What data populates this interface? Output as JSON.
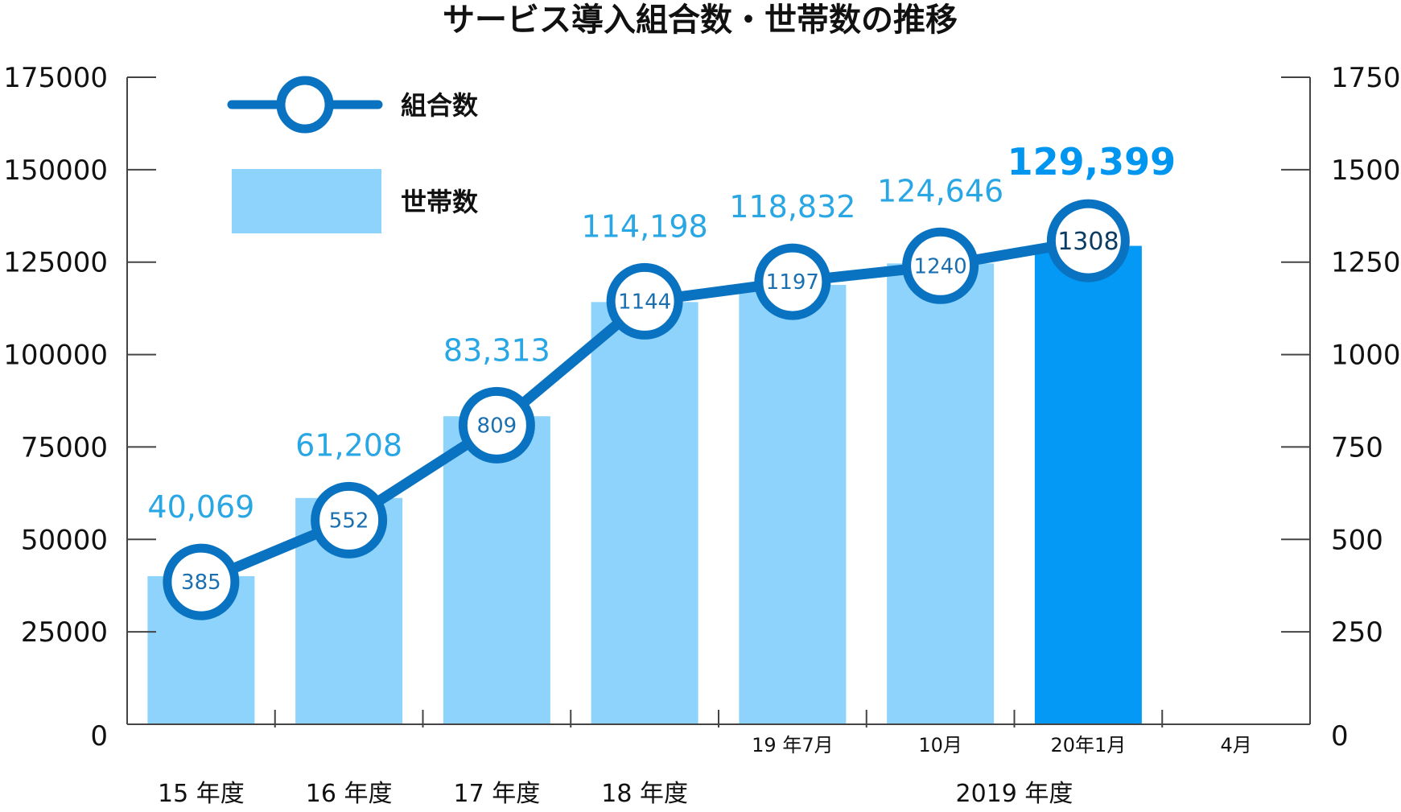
{
  "chart_data": {
    "type": "bar",
    "title": "サービス導入組合数・世帯数の推移",
    "categories": [
      "15 年度",
      "16 年度",
      "17 年度",
      "18 年度",
      "19 年7月",
      "10月",
      "20年1月",
      "4月"
    ],
    "group_label": "2019 年度",
    "ylim_left": [
      0,
      175000
    ],
    "ylim_right": [
      0,
      1750
    ],
    "yticks_left": [
      "0",
      "25000",
      "50000",
      "75000",
      "100000",
      "125000",
      "150000",
      "175000"
    ],
    "yticks_right": [
      "0",
      "250",
      "500",
      "750",
      "1000",
      "1250",
      "1500",
      "1750"
    ],
    "grid": false,
    "legend_position": "top-left",
    "series": [
      {
        "name": "世帯数",
        "kind": "bar",
        "axis": "left",
        "values": [
          40069,
          61208,
          83313,
          114198,
          118832,
          124646,
          129399,
          null
        ],
        "labels": [
          "40,069",
          "61,208",
          "83,313",
          "114,198",
          "118,832",
          "124,646",
          "129,399",
          ""
        ],
        "color": "#8dd3fb",
        "highlight_color": "#0399f5",
        "highlight_index": 6
      },
      {
        "name": "組合数",
        "kind": "line",
        "axis": "right",
        "values": [
          385,
          552,
          809,
          1144,
          1197,
          1240,
          1308,
          null
        ],
        "labels": [
          "385",
          "552",
          "809",
          "1144",
          "1197",
          "1240",
          "1308",
          ""
        ],
        "color": "#0a73c1"
      }
    ]
  }
}
